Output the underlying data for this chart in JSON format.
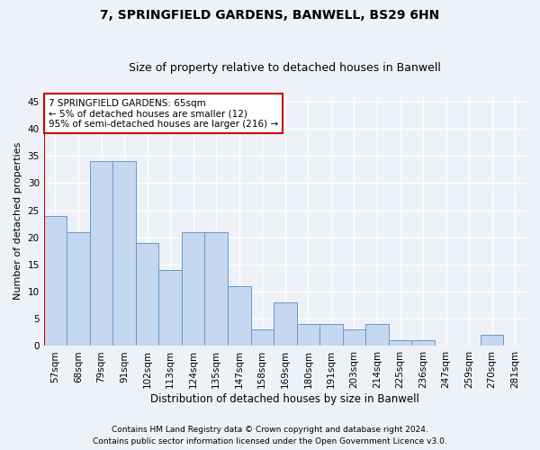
{
  "title1": "7, SPRINGFIELD GARDENS, BANWELL, BS29 6HN",
  "title2": "Size of property relative to detached houses in Banwell",
  "xlabel": "Distribution of detached houses by size in Banwell",
  "ylabel": "Number of detached properties",
  "categories": [
    "57sqm",
    "68sqm",
    "79sqm",
    "91sqm",
    "102sqm",
    "113sqm",
    "124sqm",
    "135sqm",
    "147sqm",
    "158sqm",
    "169sqm",
    "180sqm",
    "191sqm",
    "203sqm",
    "214sqm",
    "225sqm",
    "236sqm",
    "247sqm",
    "259sqm",
    "270sqm",
    "281sqm"
  ],
  "values": [
    24,
    21,
    34,
    34,
    19,
    14,
    21,
    21,
    11,
    3,
    8,
    4,
    4,
    3,
    4,
    1,
    1,
    0,
    0,
    2,
    0
  ],
  "bar_color": "#c5d8f0",
  "bar_edge_color": "#6699cc",
  "annotation_box_color": "#ffffff",
  "annotation_box_edge": "#cc0000",
  "annotation_line_color": "#cc0000",
  "annotation_text_line1": "7 SPRINGFIELD GARDENS: 65sqm",
  "annotation_text_line2": "← 5% of detached houses are smaller (12)",
  "annotation_text_line3": "95% of semi-detached houses are larger (216) →",
  "ylim": [
    0,
    46
  ],
  "yticks": [
    0,
    5,
    10,
    15,
    20,
    25,
    30,
    35,
    40,
    45
  ],
  "footer1": "Contains HM Land Registry data © Crown copyright and database right 2024.",
  "footer2": "Contains public sector information licensed under the Open Government Licence v3.0.",
  "background_color": "#eef2f8",
  "grid_color": "#ffffff",
  "title1_fontsize": 10,
  "title2_fontsize": 9,
  "xlabel_fontsize": 8.5,
  "ylabel_fontsize": 8,
  "tick_fontsize": 7.5,
  "annotation_fontsize": 7.5,
  "footer_fontsize": 6.5
}
